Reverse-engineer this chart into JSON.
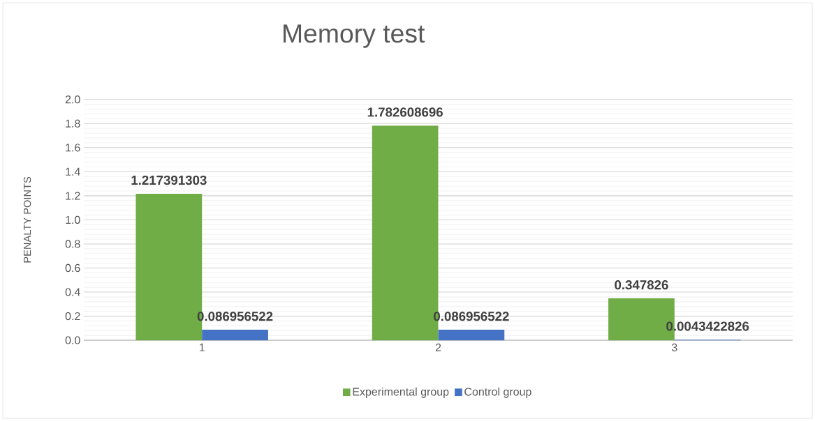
{
  "chart_data": {
    "type": "bar",
    "title": "Memory test",
    "ylabel": "PENALTY POINTS",
    "categories": [
      "1",
      "2",
      "3"
    ],
    "series": [
      {
        "name": "Experimental group",
        "color": "#70ad47",
        "values": [
          1.217391303,
          1.782608696,
          0.347826
        ]
      },
      {
        "name": "Control group",
        "color": "#4472c4",
        "values": [
          0.086956522,
          0.086956522,
          0.0043422826
        ]
      }
    ],
    "ylim": [
      0,
      2.0
    ],
    "yticks": [
      {
        "value": 0,
        "label": "0.0"
      },
      {
        "value": 0.04,
        "label": null
      },
      {
        "value": 0.08,
        "label": null
      },
      {
        "value": 0.12,
        "label": null
      },
      {
        "value": 0.16,
        "label": null
      },
      {
        "value": 0.2,
        "label": "0.2"
      },
      {
        "value": 0.24,
        "label": null
      },
      {
        "value": 0.28,
        "label": null
      },
      {
        "value": 0.32,
        "label": null
      },
      {
        "value": 0.36,
        "label": null
      },
      {
        "value": 0.4,
        "label": "0.4"
      },
      {
        "value": 0.44,
        "label": null
      },
      {
        "value": 0.48,
        "label": null
      },
      {
        "value": 0.52,
        "label": null
      },
      {
        "value": 0.56,
        "label": null
      },
      {
        "value": 0.6,
        "label": "0.6"
      },
      {
        "value": 0.64,
        "label": null
      },
      {
        "value": 0.68,
        "label": null
      },
      {
        "value": 0.72,
        "label": null
      },
      {
        "value": 0.76,
        "label": null
      },
      {
        "value": 0.8,
        "label": "0.8"
      },
      {
        "value": 0.84,
        "label": null
      },
      {
        "value": 0.88,
        "label": null
      },
      {
        "value": 0.92,
        "label": null
      },
      {
        "value": 0.96,
        "label": null
      },
      {
        "value": 1.0,
        "label": "1.0"
      },
      {
        "value": 1.04,
        "label": null
      },
      {
        "value": 1.08,
        "label": null
      },
      {
        "value": 1.12,
        "label": null
      },
      {
        "value": 1.16,
        "label": null
      },
      {
        "value": 1.2,
        "label": "1.2"
      },
      {
        "value": 1.24,
        "label": null
      },
      {
        "value": 1.28,
        "label": null
      },
      {
        "value": 1.32,
        "label": null
      },
      {
        "value": 1.36,
        "label": null
      },
      {
        "value": 1.4,
        "label": "1.4"
      },
      {
        "value": 1.44,
        "label": null
      },
      {
        "value": 1.48,
        "label": null
      },
      {
        "value": 1.52,
        "label": null
      },
      {
        "value": 1.56,
        "label": null
      },
      {
        "value": 1.6,
        "label": "1.6"
      },
      {
        "value": 1.64,
        "label": null
      },
      {
        "value": 1.68,
        "label": null
      },
      {
        "value": 1.72,
        "label": null
      },
      {
        "value": 1.76,
        "label": null
      },
      {
        "value": 1.8,
        "label": "1.8"
      },
      {
        "value": 1.84,
        "label": null
      },
      {
        "value": 1.88,
        "label": null
      },
      {
        "value": 1.92,
        "label": null
      },
      {
        "value": 1.96,
        "label": null
      },
      {
        "value": 2.0,
        "label": "2.0"
      }
    ],
    "grid": "y",
    "legend": "bottom",
    "data_labels": true
  }
}
